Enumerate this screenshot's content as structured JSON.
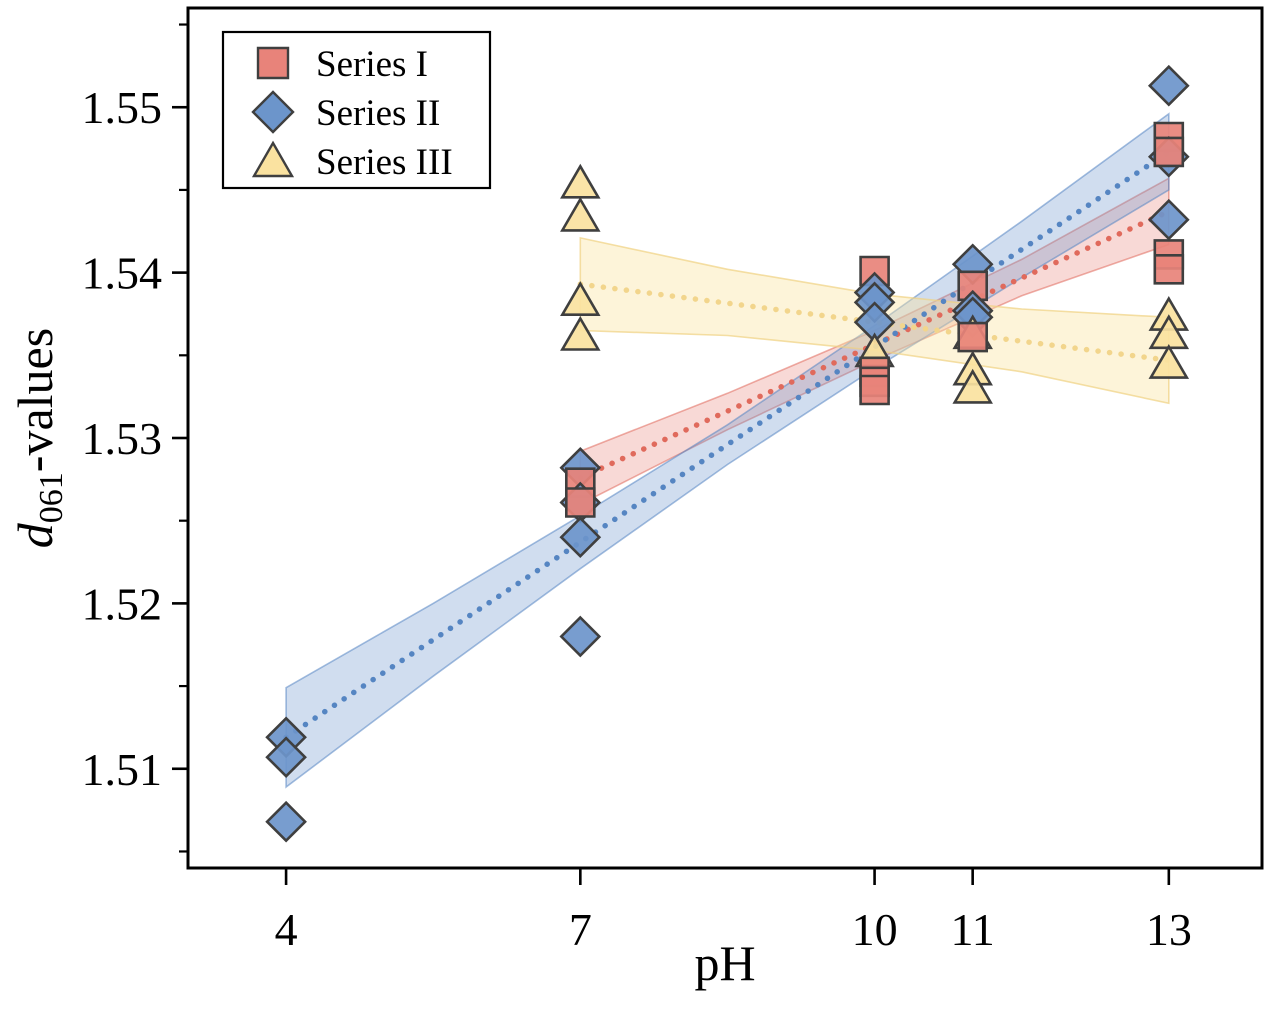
{
  "figure": {
    "xlabel": "pH",
    "ylabel": "d061-values",
    "ylabel_parts": {
      "lead_italic": "d",
      "subscript": "061",
      "rest": "-values"
    },
    "background_color": "#ffffff",
    "frame_color": "#000000"
  },
  "legend": {
    "position": "upper-left",
    "border_color": "#000000",
    "items": [
      "Series I",
      "Series II",
      "Series III"
    ]
  },
  "chart_data": {
    "type": "scatter",
    "title": "",
    "xlabel": "pH",
    "ylabel": "d061-values",
    "xlim": [
      3.0,
      13.95
    ],
    "ylim": [
      1.504,
      1.556
    ],
    "x_ticks": [
      4,
      7,
      10,
      11,
      13
    ],
    "y_ticks": [
      1.51,
      1.52,
      1.53,
      1.54,
      1.55
    ],
    "y_minor_ticks": [
      1.505,
      1.515,
      1.525,
      1.535,
      1.545,
      1.555
    ],
    "grid": false,
    "legend_position": "upper-left",
    "marker_edge_color": "#3f3f3f",
    "series": [
      {
        "name": "Series I",
        "marker": "square",
        "fill_color": "#E8837A",
        "line_color": "#E06A5C",
        "band_fill": "rgba(232,130,120,0.30)",
        "band_edge": "rgba(224,106,92,0.55)",
        "points": [
          [
            7,
            1.5273
          ],
          [
            7,
            1.5261
          ],
          [
            10,
            1.5401
          ],
          [
            10,
            1.534
          ],
          [
            10,
            1.5334
          ],
          [
            10,
            1.5329
          ],
          [
            11,
            1.5392
          ],
          [
            11,
            1.5361
          ],
          [
            13,
            1.5482
          ],
          [
            13,
            1.5473
          ],
          [
            13,
            1.5411
          ],
          [
            13,
            1.5402
          ]
        ],
        "trend": {
          "x": [
            7,
            13
          ],
          "y": [
            1.5276,
            1.5437
          ]
        },
        "band": {
          "x": [
            7,
            8.5,
            10,
            11.5,
            13
          ],
          "upper": [
            1.5292,
            1.5327,
            1.5365,
            1.5408,
            1.5457
          ],
          "lower": [
            1.526,
            1.5305,
            1.5347,
            1.5386,
            1.5417
          ]
        }
      },
      {
        "name": "Series II",
        "marker": "diamond",
        "fill_color": "#6C95CB",
        "line_color": "#5585C2",
        "band_fill": "rgba(110,150,205,0.32)",
        "band_edge": "rgba(85,133,194,0.55)",
        "points": [
          [
            4,
            1.5119
          ],
          [
            4,
            1.5107
          ],
          [
            4,
            1.5068
          ],
          [
            7,
            1.5282
          ],
          [
            7,
            1.5261
          ],
          [
            7,
            1.524
          ],
          [
            7,
            1.518
          ],
          [
            10,
            1.5388
          ],
          [
            10,
            1.5382
          ],
          [
            10,
            1.537
          ],
          [
            11,
            1.5405
          ],
          [
            11,
            1.5377
          ],
          [
            11,
            1.5373
          ],
          [
            13,
            1.5513
          ],
          [
            13,
            1.547
          ],
          [
            13,
            1.5432
          ]
        ],
        "trend": {
          "x": [
            4,
            13
          ],
          "y": [
            1.5119,
            1.5473
          ]
        },
        "band": {
          "x": [
            4,
            5.5,
            7,
            8.5,
            10,
            11.5,
            13
          ],
          "upper": [
            1.5149,
            1.52,
            1.5253,
            1.5308,
            1.5368,
            1.5431,
            1.5496
          ],
          "lower": [
            1.5089,
            1.5156,
            1.5221,
            1.5284,
            1.5342,
            1.5397,
            1.545
          ]
        }
      },
      {
        "name": "Series III",
        "marker": "triangle",
        "fill_color": "#FAE2A0",
        "line_color": "#F2D58C",
        "band_fill": "rgba(250,227,161,0.40)",
        "band_edge": "rgba(240,210,130,0.70)",
        "points": [
          [
            7,
            1.5454
          ],
          [
            7,
            1.5434
          ],
          [
            7,
            1.5383
          ],
          [
            7,
            1.5362
          ],
          [
            10,
            1.5352
          ],
          [
            11,
            1.5363
          ],
          [
            11,
            1.5341
          ],
          [
            11,
            1.533
          ],
          [
            13,
            1.5374
          ],
          [
            13,
            1.5363
          ],
          [
            13,
            1.5345
          ]
        ],
        "trend": {
          "x": [
            7,
            13
          ],
          "y": [
            1.5393,
            1.5347
          ]
        },
        "band": {
          "x": [
            7,
            8.5,
            10,
            11.5,
            13
          ],
          "upper": [
            1.5421,
            1.5402,
            1.5387,
            1.5378,
            1.5373
          ],
          "lower": [
            1.5365,
            1.5362,
            1.5353,
            1.534,
            1.5321
          ]
        }
      }
    ]
  }
}
